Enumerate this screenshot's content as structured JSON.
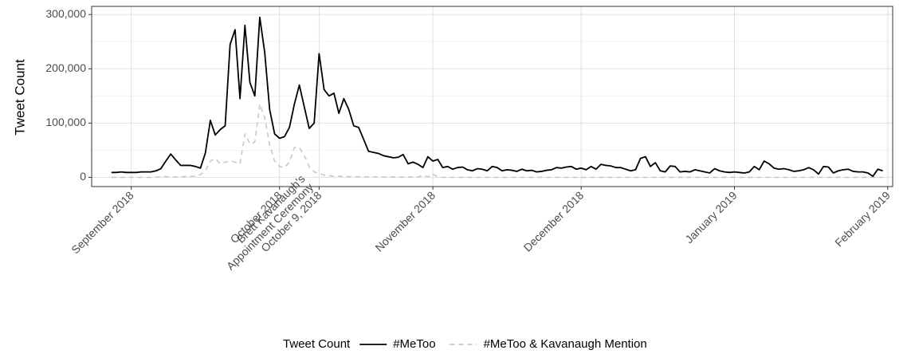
{
  "chart_data": {
    "type": "line",
    "ylabel": "Tweet Count",
    "legend_title": "Tweet Count",
    "legend": "bottom",
    "grid": true,
    "xlim": [
      "2018-08-24",
      "2019-02-02"
    ],
    "ylim": [
      -17000,
      315000
    ],
    "yticks": [
      0,
      {
        "value": 100000,
        "label": "100,000"
      },
      {
        "value": 200000,
        "label": "200,000"
      },
      {
        "value": 300000,
        "label": "300,000"
      }
    ],
    "xticks": [
      {
        "value": "2018-09-01",
        "label": "September 2018"
      },
      {
        "value": "2018-10-01",
        "label": "October 2018"
      },
      {
        "value": "2018-10-09",
        "label": "Brett Kavanaugh's\nAppointment Ceremony\nOctober 9, 2018"
      },
      {
        "value": "2018-11-01",
        "label": "November 2018"
      },
      {
        "value": "2018-12-01",
        "label": "December 2018"
      },
      {
        "value": "2019-01-01",
        "label": "January 2019"
      },
      {
        "value": "2019-02-01",
        "label": "February 2019"
      }
    ],
    "x": [
      "2018-08-28",
      "2018-08-29",
      "2018-08-30",
      "2018-08-31",
      "2018-09-01",
      "2018-09-02",
      "2018-09-03",
      "2018-09-04",
      "2018-09-05",
      "2018-09-06",
      "2018-09-07",
      "2018-09-08",
      "2018-09-09",
      "2018-09-10",
      "2018-09-11",
      "2018-09-12",
      "2018-09-13",
      "2018-09-14",
      "2018-09-15",
      "2018-09-16",
      "2018-09-17",
      "2018-09-18",
      "2018-09-19",
      "2018-09-20",
      "2018-09-21",
      "2018-09-22",
      "2018-09-23",
      "2018-09-24",
      "2018-09-25",
      "2018-09-26",
      "2018-09-27",
      "2018-09-28",
      "2018-09-29",
      "2018-09-30",
      "2018-10-01",
      "2018-10-02",
      "2018-10-03",
      "2018-10-04",
      "2018-10-05",
      "2018-10-06",
      "2018-10-07",
      "2018-10-08",
      "2018-10-09",
      "2018-10-10",
      "2018-10-11",
      "2018-10-12",
      "2018-10-13",
      "2018-10-14",
      "2018-10-15",
      "2018-10-16",
      "2018-10-17",
      "2018-10-18",
      "2018-10-19",
      "2018-10-20",
      "2018-10-21",
      "2018-10-22",
      "2018-10-23",
      "2018-10-24",
      "2018-10-25",
      "2018-10-26",
      "2018-10-27",
      "2018-10-28",
      "2018-10-29",
      "2018-10-30",
      "2018-10-31",
      "2018-11-01",
      "2018-11-02",
      "2018-11-03",
      "2018-11-04",
      "2018-11-05",
      "2018-11-06",
      "2018-11-07",
      "2018-11-08",
      "2018-11-09",
      "2018-11-10",
      "2018-11-11",
      "2018-11-12",
      "2018-11-13",
      "2018-11-14",
      "2018-11-15",
      "2018-11-16",
      "2018-11-17",
      "2018-11-18",
      "2018-11-19",
      "2018-11-20",
      "2018-11-21",
      "2018-11-22",
      "2018-11-23",
      "2018-11-24",
      "2018-11-25",
      "2018-11-26",
      "2018-11-27",
      "2018-11-28",
      "2018-11-29",
      "2018-11-30",
      "2018-12-01",
      "2018-12-02",
      "2018-12-03",
      "2018-12-04",
      "2018-12-05",
      "2018-12-06",
      "2018-12-07",
      "2018-12-08",
      "2018-12-09",
      "2018-12-10",
      "2018-12-11",
      "2018-12-12",
      "2018-12-13",
      "2018-12-14",
      "2018-12-15",
      "2018-12-16",
      "2018-12-17",
      "2018-12-18",
      "2018-12-19",
      "2018-12-20",
      "2018-12-21",
      "2018-12-22",
      "2018-12-23",
      "2018-12-24",
      "2018-12-25",
      "2018-12-26",
      "2018-12-27",
      "2018-12-28",
      "2018-12-29",
      "2018-12-30",
      "2018-12-31",
      "2019-01-01",
      "2019-01-02",
      "2019-01-03",
      "2019-01-04",
      "2019-01-05",
      "2019-01-06",
      "2019-01-07",
      "2019-01-08",
      "2019-01-09",
      "2019-01-10",
      "2019-01-11",
      "2019-01-12",
      "2019-01-13",
      "2019-01-14",
      "2019-01-15",
      "2019-01-16",
      "2019-01-17",
      "2019-01-18",
      "2019-01-19",
      "2019-01-20",
      "2019-01-21",
      "2019-01-22",
      "2019-01-23",
      "2019-01-24",
      "2019-01-25",
      "2019-01-26",
      "2019-01-27",
      "2019-01-28",
      "2019-01-29",
      "2019-01-30",
      "2019-01-31"
    ],
    "series": [
      {
        "name": "#MeToo",
        "color": "#000000",
        "dash": "solid",
        "values": [
          9000,
          9000,
          10000,
          9000,
          9000,
          9000,
          10000,
          10000,
          10000,
          12000,
          16000,
          30000,
          43000,
          32000,
          22000,
          22000,
          22000,
          20000,
          17000,
          45000,
          105000,
          78000,
          88000,
          95000,
          245000,
          272000,
          145000,
          280000,
          175000,
          150000,
          295000,
          230000,
          125000,
          80000,
          72000,
          75000,
          92000,
          135000,
          170000,
          130000,
          90000,
          100000,
          228000,
          162000,
          150000,
          155000,
          118000,
          145000,
          125000,
          95000,
          92000,
          70000,
          48000,
          46000,
          44000,
          40000,
          38000,
          36000,
          37000,
          42000,
          25000,
          28000,
          24000,
          18000,
          38000,
          30000,
          33000,
          18000,
          20000,
          15000,
          18000,
          19000,
          14000,
          12000,
          16000,
          15000,
          12000,
          20000,
          18000,
          12000,
          14000,
          13000,
          11000,
          15000,
          12000,
          13000,
          10000,
          11000,
          13000,
          14000,
          18000,
          17000,
          19000,
          20000,
          15000,
          17000,
          14000,
          20000,
          15000,
          24000,
          22000,
          21000,
          18000,
          18000,
          15000,
          12000,
          14000,
          35000,
          38000,
          20000,
          27000,
          12000,
          10000,
          21000,
          20000,
          10000,
          11000,
          10000,
          14000,
          12000,
          10000,
          8000,
          16000,
          12000,
          10000,
          9000,
          10000,
          9000,
          8000,
          10000,
          20000,
          14000,
          30000,
          25000,
          17000,
          15000,
          16000,
          14000,
          11000,
          12000,
          14000,
          18000,
          14000,
          6000,
          20000,
          19000,
          8000,
          12000,
          14000,
          15000,
          11000,
          10000,
          10000,
          8000,
          2000,
          15000,
          12000
        ]
      },
      {
        "name": "#MeToo & Kavanaugh Mention",
        "color": "#c8c8c8",
        "dash": "dashed",
        "values": [
          0,
          0,
          0,
          0,
          0,
          0,
          0,
          0,
          0,
          500,
          1000,
          1500,
          1000,
          500,
          1000,
          1500,
          2000,
          2000,
          5000,
          12000,
          30000,
          35000,
          25000,
          28000,
          30000,
          28000,
          25000,
          80000,
          62000,
          65000,
          135000,
          110000,
          60000,
          30000,
          20000,
          18000,
          28000,
          55000,
          55000,
          40000,
          20000,
          10000,
          7000,
          4000,
          3000,
          2000,
          2000,
          1500,
          1500,
          1000,
          1000,
          1000,
          1000,
          800,
          800,
          700,
          700,
          600,
          600,
          600,
          500,
          500,
          500,
          4000,
          1000,
          6000,
          1000,
          0,
          0,
          0,
          0,
          0,
          0,
          0,
          0,
          0,
          0,
          0,
          0,
          0,
          0,
          0,
          0,
          0,
          0,
          0,
          0,
          0,
          0,
          0,
          0,
          0,
          0,
          0,
          0,
          0,
          0,
          0,
          0,
          0,
          0,
          0,
          0,
          0,
          0,
          0,
          0,
          0,
          0,
          0,
          0,
          0,
          0,
          0,
          0,
          0,
          0,
          0,
          0,
          0,
          0,
          0,
          0,
          0,
          0,
          0,
          0,
          0,
          0,
          0,
          0,
          0,
          0,
          0,
          0,
          0,
          0,
          0,
          0,
          0,
          0,
          0,
          0,
          0,
          0,
          0,
          0,
          0,
          0,
          0,
          0,
          0,
          0,
          0,
          0,
          0,
          0
        ]
      }
    ]
  }
}
